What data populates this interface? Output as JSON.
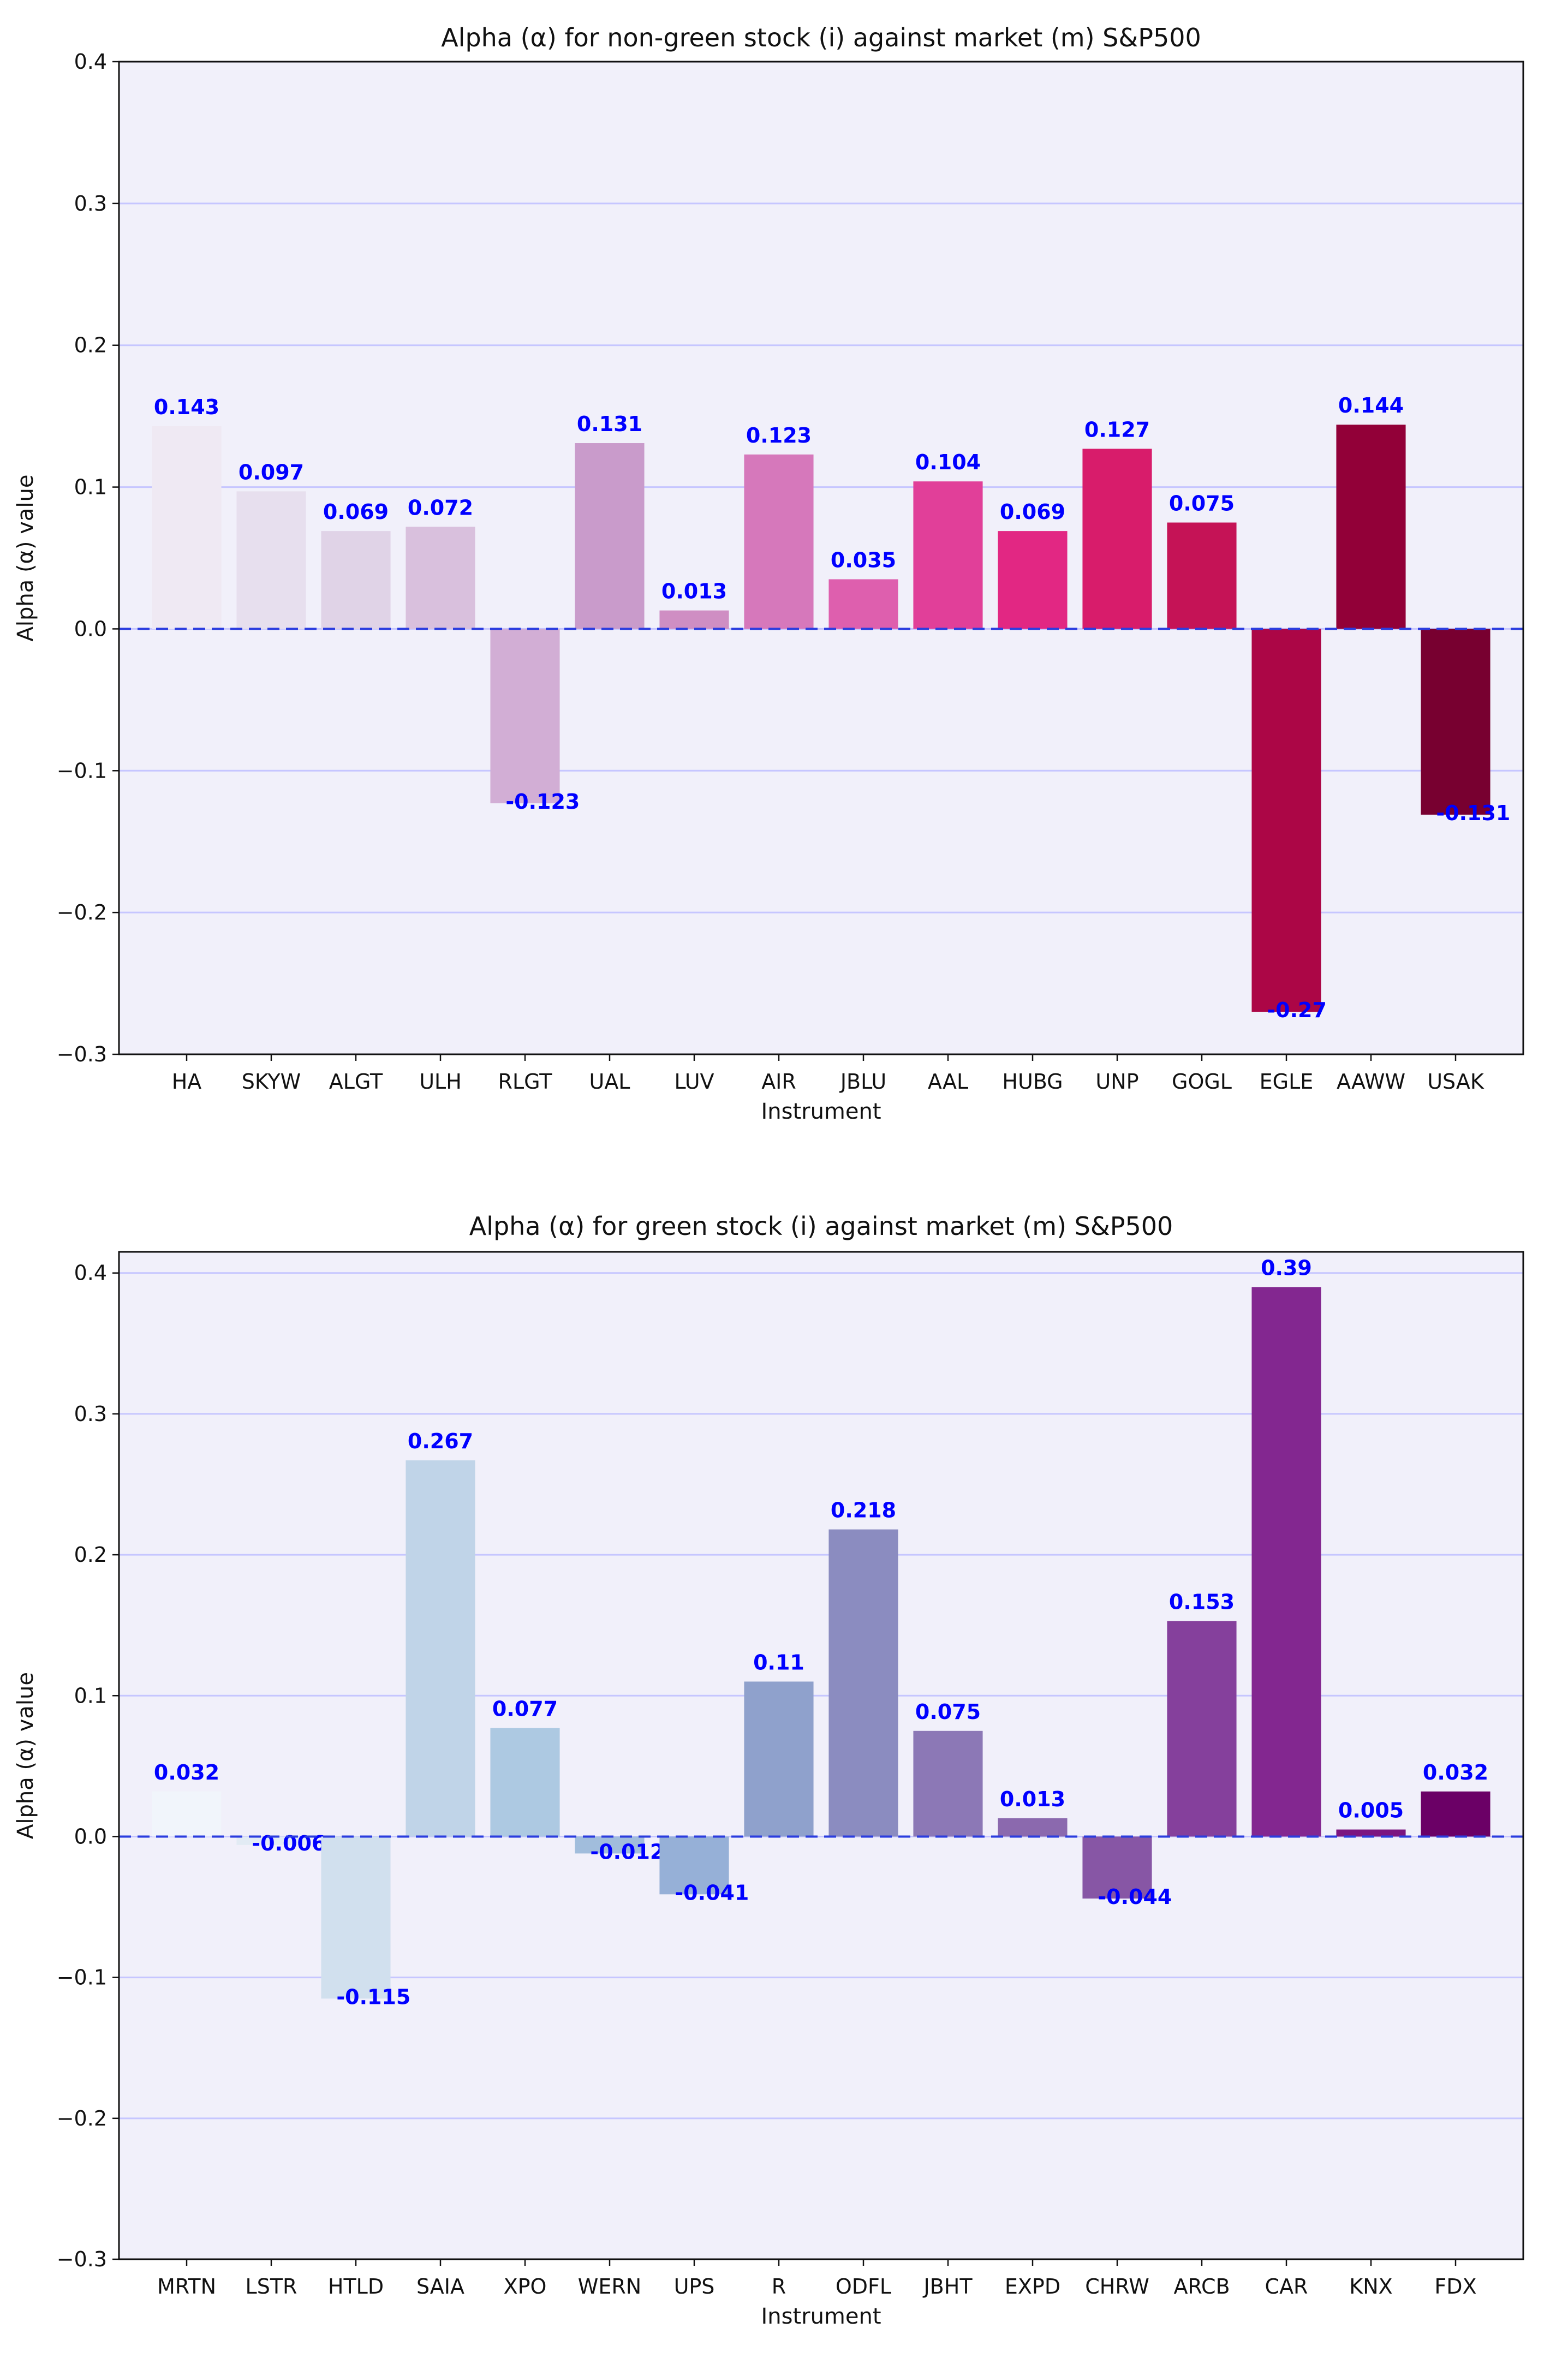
{
  "chart_data": [
    {
      "type": "bar",
      "title": "Alpha (α) for non-green stock (i) against market (m) S&P500",
      "xlabel": "Instrument",
      "ylabel": "Alpha (α) value",
      "ylim": [
        -0.3,
        0.4
      ],
      "yticks": [
        -0.3,
        -0.2,
        -0.1,
        0.0,
        0.1,
        0.2,
        0.3,
        0.4
      ],
      "ytick_labels": [
        "−0.3",
        "−0.2",
        "−0.1",
        "0.0",
        "0.1",
        "0.2",
        "0.3",
        "0.4"
      ],
      "grid": "horizontal",
      "baseline": 0.0,
      "categories": [
        "HA",
        "SKYW",
        "ALGT",
        "ULH",
        "RLGT",
        "UAL",
        "LUV",
        "AIR",
        "JBLU",
        "AAL",
        "HUBG",
        "UNP",
        "GOGL",
        "EGLE",
        "AAWW",
        "USAK"
      ],
      "values": [
        0.143,
        0.097,
        0.069,
        0.072,
        -0.123,
        0.131,
        0.013,
        0.123,
        0.035,
        0.104,
        0.069,
        0.127,
        0.075,
        -0.27,
        0.144,
        -0.131
      ],
      "value_labels": [
        "0.143",
        "0.097",
        "0.069",
        "0.072",
        "-0.123",
        "0.131",
        "0.013",
        "0.123",
        "0.035",
        "0.104",
        "0.069",
        "0.127",
        "0.075",
        "-0.27",
        "0.144",
        "-0.131"
      ],
      "colors": [
        "#efe9f3",
        "#e7dfee",
        "#e0d3e7",
        "#d9c0dd",
        "#d2aed5",
        "#c99bcb",
        "#cf8ec3",
        "#d678bb",
        "#de5fae",
        "#e13f99",
        "#e22783",
        "#d81c6b",
        "#c51356",
        "#ac0646",
        "#920038",
        "#780030"
      ],
      "label_color": "#0000ff",
      "background_color": "#f1f0fa",
      "grid_color": "#c6c6ff",
      "baseline_color": "#2b3ddf"
    },
    {
      "type": "bar",
      "title": "Alpha (α) for green stock (i) against market (m) S&P500",
      "xlabel": "Instrument",
      "ylabel": "Alpha (α) value",
      "ylim": [
        -0.3,
        0.415
      ],
      "yticks": [
        -0.3,
        -0.2,
        -0.1,
        0.0,
        0.1,
        0.2,
        0.3,
        0.4
      ],
      "ytick_labels": [
        "−0.3",
        "−0.2",
        "−0.1",
        "0.0",
        "0.1",
        "0.2",
        "0.3",
        "0.4"
      ],
      "grid": "horizontal",
      "baseline": 0.0,
      "categories": [
        "MRTN",
        "LSTR",
        "HTLD",
        "SAIA",
        "XPO",
        "WERN",
        "UPS",
        "R",
        "ODFL",
        "JBHT",
        "EXPD",
        "CHRW",
        "ARCB",
        "CAR",
        "KNX",
        "FDX"
      ],
      "values": [
        0.032,
        -0.006,
        -0.115,
        0.267,
        0.077,
        -0.012,
        -0.041,
        0.11,
        0.218,
        0.075,
        0.013,
        -0.044,
        0.153,
        0.39,
        0.005,
        0.032
      ],
      "value_labels": [
        "0.032",
        "-0.006",
        "-0.115",
        "0.267",
        "0.077",
        "-0.012",
        "-0.041",
        "0.11",
        "0.218",
        "0.075",
        "0.013",
        "-0.044",
        "0.153",
        "0.39",
        "0.005",
        "0.032"
      ],
      "colors": [
        "#f1f5fb",
        "#e2ebf4",
        "#d1e0ee",
        "#c0d4e8",
        "#adc9e2",
        "#a1bddc",
        "#96b0d7",
        "#8fa1cc",
        "#8b8cc0",
        "#8c78b6",
        "#8b69ae",
        "#8756a5",
        "#85409c",
        "#832790",
        "#7c1580",
        "#6b0066"
      ],
      "label_color": "#0000ff",
      "background_color": "#f1f0fa",
      "grid_color": "#c6c6ff",
      "baseline_color": "#2b3ddf"
    }
  ]
}
